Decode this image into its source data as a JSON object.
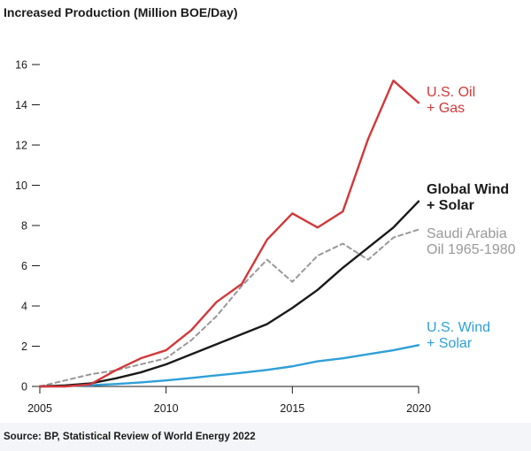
{
  "chart_data": {
    "type": "line",
    "title": "Increased Production (Million BOE/Day)",
    "source": "Source: BP, Statistical Review of World Energy 2022",
    "xlabel": "",
    "ylabel": "",
    "xlim": [
      2005,
      2020
    ],
    "ylim": [
      0,
      16
    ],
    "x_ticks": [
      2005,
      2010,
      2015,
      2020
    ],
    "y_ticks": [
      0,
      2,
      4,
      6,
      8,
      10,
      12,
      14,
      16
    ],
    "grid": false,
    "x": [
      2005,
      2006,
      2007,
      2008,
      2009,
      2010,
      2011,
      2012,
      2013,
      2014,
      2015,
      2016,
      2017,
      2018,
      2019,
      2020
    ],
    "series": [
      {
        "name": "U.S. Oil + Gas",
        "label_lines": [
          "U.S. Oil",
          "+ Gas"
        ],
        "color": "#d2383a",
        "dashed": false,
        "values": [
          0,
          0,
          0.1,
          0.8,
          1.4,
          1.8,
          2.8,
          4.2,
          5.1,
          7.3,
          8.6,
          7.9,
          8.7,
          12.3,
          15.2,
          14.1
        ]
      },
      {
        "name": "Global Wind + Solar",
        "label_lines": [
          "Global Wind",
          "+ Solar"
        ],
        "color": "#1a1a1a",
        "dashed": false,
        "values": [
          0,
          0.05,
          0.15,
          0.4,
          0.7,
          1.1,
          1.6,
          2.1,
          2.6,
          3.1,
          3.9,
          4.8,
          5.9,
          6.9,
          7.9,
          9.2
        ]
      },
      {
        "name": "Saudi Arabia Oil 1965-1980",
        "label_lines": [
          "Saudi Arabia",
          "Oil 1965-1980"
        ],
        "color": "#999999",
        "dashed": true,
        "values": [
          0,
          0.3,
          0.6,
          0.8,
          1.1,
          1.4,
          2.3,
          3.5,
          5.0,
          6.3,
          5.2,
          6.5,
          7.1,
          6.3,
          7.4,
          7.8
        ]
      },
      {
        "name": "U.S. Wind + Solar",
        "label_lines": [
          "U.S. Wind",
          "+ Solar"
        ],
        "color": "#2f9fd8",
        "dashed": false,
        "values": [
          0,
          0.02,
          0.06,
          0.12,
          0.2,
          0.3,
          0.42,
          0.55,
          0.68,
          0.82,
          1.0,
          1.25,
          1.4,
          1.6,
          1.8,
          2.05
        ]
      }
    ]
  }
}
